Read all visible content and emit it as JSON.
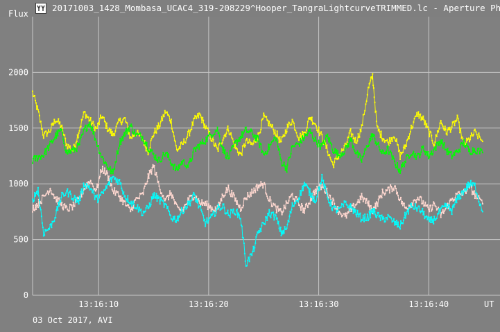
{
  "window": {
    "title": "20171003_1428_Mombasa_UCAC4_319-208229^Hooper_TangraLightcurveTRIMMED.lc - Aperture Photometry",
    "icon": "lightcurve-app-icon"
  },
  "footer": {
    "date_text": "03 Oct 2017, AVI"
  },
  "chart_data": {
    "type": "scatter",
    "ylabel": "Flux",
    "xlabel": "UT",
    "ylim": [
      0,
      2500
    ],
    "xlim": [
      4.0,
      44.9
    ],
    "y_ticks": [
      500,
      1000,
      1500,
      2000
    ],
    "x_ticks": [
      {
        "value": 10,
        "label": "13:16:10"
      },
      {
        "value": 20,
        "label": "13:16:20"
      },
      {
        "value": 30,
        "label": "13:16:30"
      },
      {
        "value": 40,
        "label": "13:16:40"
      }
    ],
    "grid": true,
    "colors": {
      "background": "#808080",
      "grid": "#c8c8c8",
      "text": "#ffffff"
    },
    "series": [
      {
        "color": "#ffff00",
        "knots": [
          [
            4.0,
            1820
          ],
          [
            4.5,
            1650
          ],
          [
            5.0,
            1430
          ],
          [
            5.6,
            1480
          ],
          [
            6.1,
            1580
          ],
          [
            6.6,
            1520
          ],
          [
            7.1,
            1350
          ],
          [
            7.7,
            1300
          ],
          [
            8.2,
            1470
          ],
          [
            8.7,
            1640
          ],
          [
            9.2,
            1570
          ],
          [
            9.8,
            1490
          ],
          [
            10.3,
            1610
          ],
          [
            10.8,
            1500
          ],
          [
            11.3,
            1440
          ],
          [
            11.9,
            1560
          ],
          [
            12.4,
            1580
          ],
          [
            12.9,
            1410
          ],
          [
            13.4,
            1460
          ],
          [
            14.0,
            1400
          ],
          [
            14.5,
            1290
          ],
          [
            15.0,
            1450
          ],
          [
            15.5,
            1520
          ],
          [
            16.1,
            1650
          ],
          [
            16.6,
            1560
          ],
          [
            17.1,
            1300
          ],
          [
            17.6,
            1350
          ],
          [
            18.2,
            1450
          ],
          [
            18.7,
            1570
          ],
          [
            19.2,
            1620
          ],
          [
            19.7,
            1510
          ],
          [
            20.3,
            1400
          ],
          [
            20.8,
            1300
          ],
          [
            21.3,
            1410
          ],
          [
            21.8,
            1500
          ],
          [
            22.4,
            1330
          ],
          [
            22.9,
            1260
          ],
          [
            23.4,
            1380
          ],
          [
            24.0,
            1350
          ],
          [
            24.5,
            1430
          ],
          [
            25.0,
            1600
          ],
          [
            25.5,
            1540
          ],
          [
            26.1,
            1460
          ],
          [
            26.6,
            1370
          ],
          [
            27.1,
            1500
          ],
          [
            27.6,
            1570
          ],
          [
            28.2,
            1420
          ],
          [
            28.7,
            1450
          ],
          [
            29.2,
            1600
          ],
          [
            29.7,
            1540
          ],
          [
            30.3,
            1420
          ],
          [
            30.8,
            1300
          ],
          [
            31.3,
            1170
          ],
          [
            31.8,
            1250
          ],
          [
            32.4,
            1330
          ],
          [
            32.9,
            1460
          ],
          [
            33.4,
            1380
          ],
          [
            33.9,
            1500
          ],
          [
            34.5,
            1850
          ],
          [
            34.9,
            1970
          ],
          [
            35.3,
            1500
          ],
          [
            35.8,
            1420
          ],
          [
            36.3,
            1370
          ],
          [
            36.9,
            1440
          ],
          [
            37.4,
            1250
          ],
          [
            37.9,
            1340
          ],
          [
            38.4,
            1500
          ],
          [
            39.0,
            1630
          ],
          [
            39.5,
            1580
          ],
          [
            40.0,
            1470
          ],
          [
            40.5,
            1360
          ],
          [
            41.1,
            1560
          ],
          [
            41.6,
            1460
          ],
          [
            42.1,
            1510
          ],
          [
            42.6,
            1580
          ],
          [
            43.2,
            1350
          ],
          [
            43.7,
            1400
          ],
          [
            44.2,
            1460
          ],
          [
            44.9,
            1380
          ]
        ]
      },
      {
        "color": "#00ff00",
        "knots": [
          [
            4.0,
            1210
          ],
          [
            4.5,
            1240
          ],
          [
            5.0,
            1260
          ],
          [
            5.6,
            1350
          ],
          [
            6.1,
            1430
          ],
          [
            6.6,
            1480
          ],
          [
            7.1,
            1280
          ],
          [
            7.7,
            1300
          ],
          [
            8.2,
            1340
          ],
          [
            8.7,
            1480
          ],
          [
            9.2,
            1550
          ],
          [
            9.8,
            1380
          ],
          [
            10.3,
            1240
          ],
          [
            10.8,
            1160
          ],
          [
            11.3,
            1090
          ],
          [
            11.9,
            1370
          ],
          [
            12.4,
            1450
          ],
          [
            12.9,
            1520
          ],
          [
            13.4,
            1440
          ],
          [
            14.0,
            1420
          ],
          [
            14.5,
            1330
          ],
          [
            15.0,
            1260
          ],
          [
            15.5,
            1210
          ],
          [
            16.1,
            1280
          ],
          [
            16.6,
            1190
          ],
          [
            17.1,
            1120
          ],
          [
            17.6,
            1200
          ],
          [
            18.2,
            1160
          ],
          [
            18.7,
            1300
          ],
          [
            19.2,
            1350
          ],
          [
            19.7,
            1390
          ],
          [
            20.3,
            1450
          ],
          [
            20.8,
            1490
          ],
          [
            21.3,
            1310
          ],
          [
            21.8,
            1230
          ],
          [
            22.4,
            1360
          ],
          [
            22.9,
            1420
          ],
          [
            23.4,
            1480
          ],
          [
            24.0,
            1450
          ],
          [
            24.5,
            1390
          ],
          [
            25.0,
            1260
          ],
          [
            25.5,
            1330
          ],
          [
            26.1,
            1420
          ],
          [
            26.6,
            1200
          ],
          [
            27.1,
            1140
          ],
          [
            27.6,
            1330
          ],
          [
            28.2,
            1360
          ],
          [
            28.7,
            1420
          ],
          [
            29.2,
            1470
          ],
          [
            29.7,
            1390
          ],
          [
            30.3,
            1330
          ],
          [
            30.8,
            1430
          ],
          [
            31.3,
            1310
          ],
          [
            31.8,
            1260
          ],
          [
            32.4,
            1300
          ],
          [
            32.9,
            1400
          ],
          [
            33.4,
            1280
          ],
          [
            33.9,
            1210
          ],
          [
            34.5,
            1360
          ],
          [
            34.9,
            1440
          ],
          [
            35.3,
            1360
          ],
          [
            35.8,
            1270
          ],
          [
            36.3,
            1310
          ],
          [
            36.9,
            1190
          ],
          [
            37.4,
            1120
          ],
          [
            37.9,
            1210
          ],
          [
            38.4,
            1290
          ],
          [
            39.0,
            1240
          ],
          [
            39.5,
            1320
          ],
          [
            40.0,
            1250
          ],
          [
            40.5,
            1310
          ],
          [
            41.1,
            1390
          ],
          [
            41.6,
            1300
          ],
          [
            42.1,
            1250
          ],
          [
            42.6,
            1290
          ],
          [
            43.2,
            1370
          ],
          [
            43.7,
            1290
          ],
          [
            44.2,
            1310
          ],
          [
            44.9,
            1280
          ]
        ]
      },
      {
        "color": "#ffd8d0",
        "knots": [
          [
            4.0,
            780
          ],
          [
            4.5,
            820
          ],
          [
            5.0,
            880
          ],
          [
            5.6,
            960
          ],
          [
            6.1,
            870
          ],
          [
            6.6,
            820
          ],
          [
            7.1,
            770
          ],
          [
            7.7,
            800
          ],
          [
            8.2,
            860
          ],
          [
            8.7,
            960
          ],
          [
            9.2,
            1030
          ],
          [
            9.8,
            940
          ],
          [
            10.3,
            1140
          ],
          [
            10.8,
            1080
          ],
          [
            11.3,
            940
          ],
          [
            11.9,
            890
          ],
          [
            12.4,
            820
          ],
          [
            12.9,
            760
          ],
          [
            13.4,
            860
          ],
          [
            14.0,
            900
          ],
          [
            14.5,
            1060
          ],
          [
            15.0,
            1160
          ],
          [
            15.5,
            980
          ],
          [
            16.1,
            850
          ],
          [
            16.6,
            920
          ],
          [
            17.1,
            780
          ],
          [
            17.6,
            760
          ],
          [
            18.2,
            860
          ],
          [
            18.7,
            900
          ],
          [
            19.2,
            830
          ],
          [
            19.7,
            820
          ],
          [
            20.3,
            780
          ],
          [
            20.8,
            770
          ],
          [
            21.3,
            900
          ],
          [
            21.8,
            960
          ],
          [
            22.4,
            860
          ],
          [
            22.9,
            780
          ],
          [
            23.4,
            880
          ],
          [
            24.0,
            930
          ],
          [
            24.5,
            980
          ],
          [
            25.0,
            1000
          ],
          [
            25.5,
            860
          ],
          [
            26.1,
            780
          ],
          [
            26.6,
            740
          ],
          [
            27.1,
            820
          ],
          [
            27.6,
            900
          ],
          [
            28.2,
            820
          ],
          [
            28.7,
            760
          ],
          [
            29.2,
            850
          ],
          [
            29.7,
            940
          ],
          [
            30.3,
            980
          ],
          [
            30.8,
            920
          ],
          [
            31.3,
            840
          ],
          [
            31.8,
            760
          ],
          [
            32.4,
            700
          ],
          [
            32.9,
            760
          ],
          [
            33.4,
            820
          ],
          [
            33.9,
            880
          ],
          [
            34.5,
            820
          ],
          [
            34.9,
            760
          ],
          [
            35.3,
            820
          ],
          [
            35.8,
            920
          ],
          [
            36.3,
            940
          ],
          [
            36.9,
            980
          ],
          [
            37.4,
            860
          ],
          [
            37.9,
            780
          ],
          [
            38.4,
            820
          ],
          [
            39.0,
            880
          ],
          [
            39.5,
            830
          ],
          [
            40.0,
            760
          ],
          [
            40.5,
            820
          ],
          [
            41.1,
            720
          ],
          [
            41.6,
            780
          ],
          [
            42.1,
            860
          ],
          [
            42.6,
            900
          ],
          [
            43.2,
            920
          ],
          [
            43.7,
            980
          ],
          [
            44.2,
            900
          ],
          [
            44.9,
            820
          ]
        ]
      },
      {
        "color": "#00ffff",
        "knots": [
          [
            4.0,
            860
          ],
          [
            4.5,
            950
          ],
          [
            5.0,
            560
          ],
          [
            5.6,
            610
          ],
          [
            6.1,
            720
          ],
          [
            6.6,
            880
          ],
          [
            7.1,
            930
          ],
          [
            7.7,
            880
          ],
          [
            8.2,
            840
          ],
          [
            8.7,
            1000
          ],
          [
            9.2,
            970
          ],
          [
            9.8,
            860
          ],
          [
            10.3,
            900
          ],
          [
            10.8,
            980
          ],
          [
            11.3,
            1060
          ],
          [
            11.9,
            1020
          ],
          [
            12.4,
            890
          ],
          [
            12.9,
            840
          ],
          [
            13.4,
            800
          ],
          [
            14.0,
            740
          ],
          [
            14.5,
            780
          ],
          [
            15.0,
            900
          ],
          [
            15.5,
            860
          ],
          [
            16.1,
            800
          ],
          [
            16.6,
            700
          ],
          [
            17.1,
            680
          ],
          [
            17.6,
            760
          ],
          [
            18.2,
            820
          ],
          [
            18.7,
            900
          ],
          [
            19.2,
            780
          ],
          [
            19.7,
            650
          ],
          [
            20.3,
            700
          ],
          [
            20.8,
            780
          ],
          [
            21.3,
            800
          ],
          [
            21.8,
            720
          ],
          [
            22.4,
            760
          ],
          [
            22.9,
            700
          ],
          [
            23.4,
            280
          ],
          [
            24.0,
            380
          ],
          [
            24.5,
            560
          ],
          [
            25.0,
            640
          ],
          [
            25.5,
            740
          ],
          [
            26.1,
            700
          ],
          [
            26.6,
            560
          ],
          [
            27.1,
            600
          ],
          [
            27.6,
            800
          ],
          [
            28.2,
            880
          ],
          [
            28.7,
            1000
          ],
          [
            29.2,
            920
          ],
          [
            29.7,
            850
          ],
          [
            30.3,
            1050
          ],
          [
            30.8,
            880
          ],
          [
            31.3,
            780
          ],
          [
            31.8,
            760
          ],
          [
            32.4,
            820
          ],
          [
            32.9,
            790
          ],
          [
            33.4,
            740
          ],
          [
            33.9,
            690
          ],
          [
            34.5,
            700
          ],
          [
            34.9,
            760
          ],
          [
            35.3,
            720
          ],
          [
            35.8,
            680
          ],
          [
            36.3,
            700
          ],
          [
            36.9,
            650
          ],
          [
            37.4,
            620
          ],
          [
            37.9,
            720
          ],
          [
            38.4,
            800
          ],
          [
            39.0,
            780
          ],
          [
            39.5,
            740
          ],
          [
            40.0,
            660
          ],
          [
            40.5,
            680
          ],
          [
            41.1,
            760
          ],
          [
            41.6,
            800
          ],
          [
            42.1,
            760
          ],
          [
            42.6,
            860
          ],
          [
            43.2,
            940
          ],
          [
            43.7,
            1000
          ],
          [
            44.2,
            980
          ],
          [
            44.9,
            750
          ]
        ]
      }
    ]
  }
}
